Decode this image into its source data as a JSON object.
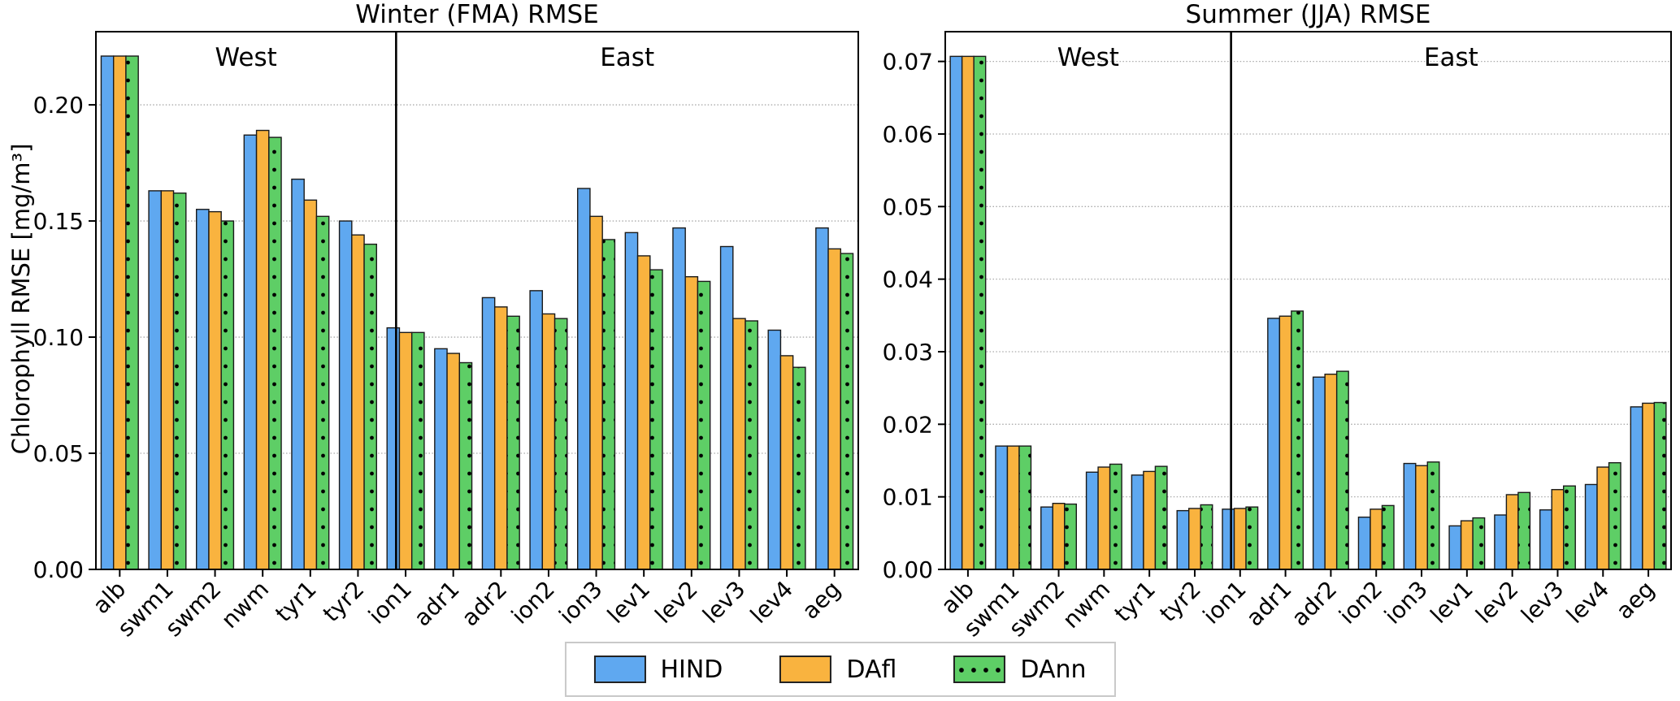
{
  "figure": {
    "ylabel": "Chlorophyll RMSE [mg/m³]",
    "colors": {
      "hind": "#5FA8F0",
      "dafl": "#F9B33F",
      "dann": "#5ECE66",
      "bar_edge": "#1a1a1a",
      "grid": "#aaaaaa",
      "axis": "#000000"
    },
    "legend": {
      "items": [
        {
          "label": "HIND",
          "key": "hind",
          "pattern": "solid"
        },
        {
          "label": "DAfl",
          "key": "dafl",
          "pattern": "solid"
        },
        {
          "label": "DAnn",
          "key": "dann",
          "pattern": "dots"
        }
      ]
    }
  },
  "chart_data": [
    {
      "type": "bar",
      "title": "Winter (FMA) RMSE",
      "ylabel": "Chlorophyll RMSE [mg/m³]",
      "xlabel": "",
      "grid": true,
      "region_labels": [
        "West",
        "East"
      ],
      "divider_after_category": "tyr2",
      "categories": [
        "alb",
        "swm1",
        "swm2",
        "nwm",
        "tyr1",
        "tyr2",
        "ion1",
        "adr1",
        "adr2",
        "ion2",
        "ion3",
        "lev1",
        "lev2",
        "lev3",
        "lev4",
        "aeg"
      ],
      "series": [
        {
          "name": "HIND",
          "color_key": "hind",
          "hatch": "none",
          "values": [
            0.221,
            0.163,
            0.155,
            0.187,
            0.168,
            0.15,
            0.104,
            0.095,
            0.117,
            0.12,
            0.164,
            0.145,
            0.147,
            0.139,
            0.103,
            0.147
          ]
        },
        {
          "name": "DAfl",
          "color_key": "dafl",
          "hatch": "none",
          "values": [
            0.221,
            0.163,
            0.154,
            0.189,
            0.159,
            0.144,
            0.102,
            0.093,
            0.113,
            0.11,
            0.152,
            0.135,
            0.126,
            0.108,
            0.092,
            0.138
          ]
        },
        {
          "name": "DAnn",
          "color_key": "dann",
          "hatch": "dots",
          "values": [
            0.221,
            0.162,
            0.15,
            0.186,
            0.152,
            0.14,
            0.102,
            0.089,
            0.109,
            0.108,
            0.142,
            0.129,
            0.124,
            0.107,
            0.087,
            0.136
          ]
        }
      ],
      "ylim": [
        0,
        0.2315
      ],
      "yticks": [
        0.0,
        0.05,
        0.1,
        0.15,
        0.2
      ],
      "ytick_labels": [
        "0.00",
        "0.05",
        "0.10",
        "0.15",
        "0.20"
      ]
    },
    {
      "type": "bar",
      "title": "Summer (JJA) RMSE",
      "ylabel": "",
      "xlabel": "",
      "grid": true,
      "region_labels": [
        "West",
        "East"
      ],
      "divider_after_category": "tyr2",
      "categories": [
        "alb",
        "swm1",
        "swm2",
        "nwm",
        "tyr1",
        "tyr2",
        "ion1",
        "adr1",
        "adr2",
        "ion2",
        "ion3",
        "lev1",
        "lev2",
        "lev3",
        "lev4",
        "aeg"
      ],
      "series": [
        {
          "name": "HIND",
          "color_key": "hind",
          "hatch": "none",
          "values": [
            0.0707,
            0.017,
            0.0086,
            0.0134,
            0.013,
            0.0081,
            0.0083,
            0.0346,
            0.0265,
            0.0072,
            0.0146,
            0.006,
            0.0075,
            0.0082,
            0.0117,
            0.0224
          ]
        },
        {
          "name": "DAfl",
          "color_key": "dafl",
          "hatch": "none",
          "values": [
            0.0707,
            0.017,
            0.0091,
            0.0141,
            0.0135,
            0.0084,
            0.0084,
            0.0349,
            0.0269,
            0.0083,
            0.0143,
            0.0067,
            0.0103,
            0.011,
            0.0141,
            0.0229
          ]
        },
        {
          "name": "DAnn",
          "color_key": "dann",
          "hatch": "dots",
          "values": [
            0.0707,
            0.017,
            0.009,
            0.0145,
            0.0142,
            0.0089,
            0.0086,
            0.0356,
            0.0273,
            0.0088,
            0.0148,
            0.0071,
            0.0106,
            0.0115,
            0.0147,
            0.023
          ]
        }
      ],
      "ylim": [
        0,
        0.0741
      ],
      "yticks": [
        0.0,
        0.01,
        0.02,
        0.03,
        0.04,
        0.05,
        0.06,
        0.07
      ],
      "ytick_labels": [
        "0.00",
        "0.01",
        "0.02",
        "0.03",
        "0.04",
        "0.05",
        "0.06",
        "0.07"
      ]
    }
  ]
}
